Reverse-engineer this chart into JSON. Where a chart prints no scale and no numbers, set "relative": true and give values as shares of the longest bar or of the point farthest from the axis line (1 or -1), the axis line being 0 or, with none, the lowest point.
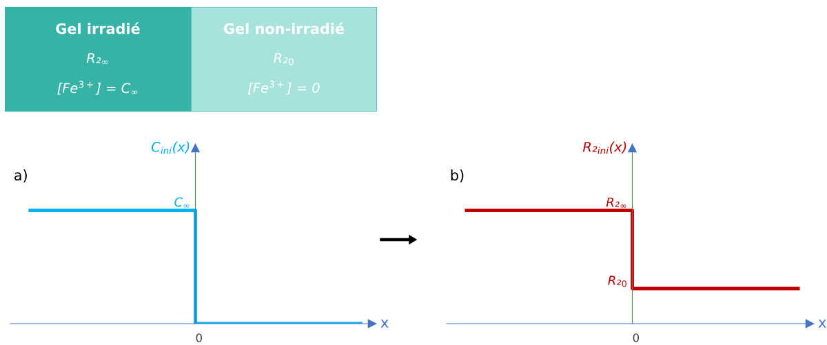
{
  "chart_data": [
    {
      "type": "other",
      "annotations": [
        "Gel irradié",
        "R₂$_{∞}$",
        "[Fe$^{3+}$] = C$_{∞}$",
        "Gel non-irradié",
        "R₂$_{0}$",
        "[Fe$^{3+}$] = 0"
      ],
      "colors": [
        "#37b2a6",
        "#a8e2dc"
      ]
    },
    {
      "type": "step",
      "relative": true,
      "categories": [
        null,
        null,
        null
      ],
      "values": [
        1,
        0,
        0
      ],
      "color": "#00b0f0",
      "xlabel": "x",
      "ylabel": "C$_{ini}$(x)",
      "annotations": [
        "a)",
        "0",
        {
          "text": "C$_{∞}$",
          "y": 1
        }
      ]
    },
    {
      "type": "step",
      "relative": true,
      "categories": [
        null,
        null,
        null
      ],
      "values": [
        1,
        0.31,
        0.31
      ],
      "color": "#c00000",
      "xlabel": "x",
      "ylabel": "R₂$_{ini}$(x)",
      "annotations": [
        "b)",
        "0",
        {
          "text": "R₂$_{∞}$",
          "y": 1
        },
        "R₂$_{0}$"
      ]
    }
  ]
}
